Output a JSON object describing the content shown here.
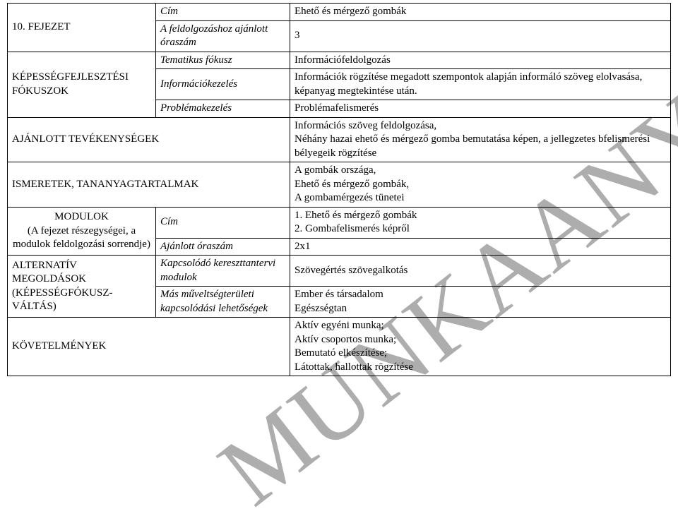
{
  "watermark": "MUNKAANYAG",
  "rows": [
    {
      "a": "10. FEJEZET",
      "b": "Cím",
      "c": "Ehető és mérgező gombák",
      "a_rowspan": 1,
      "b_italic": true
    },
    {
      "b": "A feldolgozáshoz ajánlott óraszám",
      "c": "3",
      "a_rowspan_start": 3,
      "a_text": "KÉPESSÉGFEJLESZTÉSI FÓKUSZOK",
      "b_italic": true,
      "merge_a_next": true
    },
    {
      "b": "Tematikus fókusz",
      "c": "Információfeldolgozás",
      "b_italic": true
    },
    {
      "b": "Információkezelés",
      "c": "Információk rögzítése megadott szempontok alapján informáló szöveg elolvasása, képanyag megtekintése után.",
      "b_italic": true
    },
    {
      "b": "Problémakezelés",
      "c": "Problémafelismerés",
      "b_italic": true
    },
    {
      "a": "AJÁNLOTT TEVÉKENYSÉGEK",
      "ab_colspan": 2,
      "c": "Információs szöveg feldolgozása,\nNéhány hazai ehető és mérgező gomba bemutatása képen, a jellegzetes bfelismerési bélyegeik rögzítése"
    },
    {
      "a": "ISMERETEK, TANANYAGTARTALMAK",
      "ab_colspan": 2,
      "c": "A gombák országa,\nEhető és mérgező gombák,\nA gombamérgezés tünetei"
    },
    {
      "a": "MODULOK\n(A fejezet részegységei, a modulok feldolgozási sorrendje)",
      "a_rowspan": 2,
      "b": "Cím",
      "c": "1. Ehető és mérgező gombák\n2. Gombafelismerés képről",
      "b_italic": true,
      "a_center": true
    },
    {
      "b": "Ajánlott óraszám",
      "c": "2x1",
      "b_italic": true
    },
    {
      "a": "ALTERNATÍV MEGOLDÁSOK (KÉPESSÉGFÓKUSZ-VÁLTÁS)",
      "a_rowspan": 2,
      "b": "Kapcsolódó kereszttantervi modulok",
      "c": "Szövegértés szövegalkotás",
      "b_italic": true
    },
    {
      "b": "Más műveltségterületi kapcsolódási lehetőségek",
      "c": "Ember és társadalom\nEgészségtan",
      "b_italic": true
    },
    {
      "a": "KÖVETELMÉNYEK",
      "ab_colspan": 2,
      "c": "Aktív egyéni munka;\nAktív csoportos munka;\nBemutató elkészítése;\nLátottak, hallottak rögzítése"
    }
  ],
  "style": {
    "font_family": "Times New Roman",
    "font_size_pt": 12,
    "watermark_color": "rgba(0,0,0,0.32)",
    "border_color": "#000000",
    "background_color": "#ffffff"
  }
}
